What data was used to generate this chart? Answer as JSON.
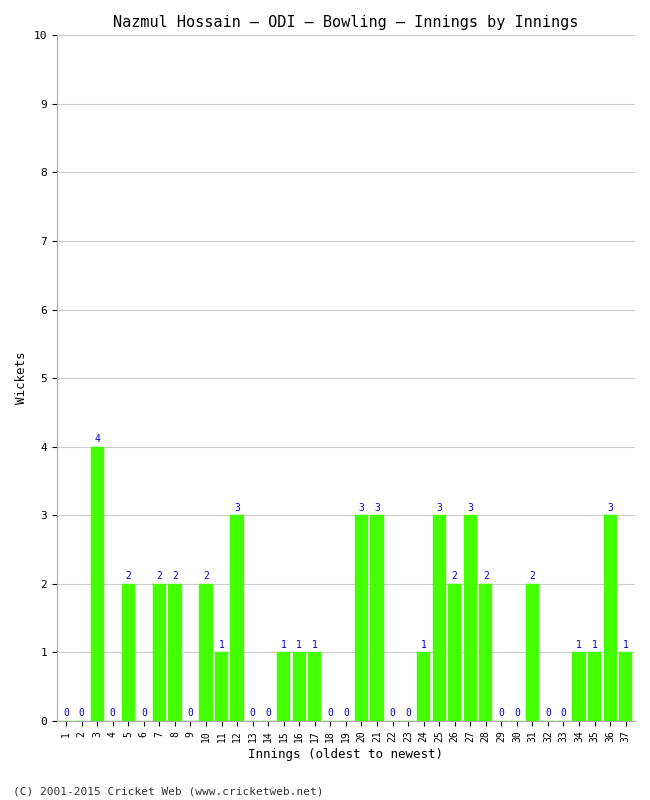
{
  "title": "Nazmul Hossain – ODI – Bowling – Innings by Innings",
  "xlabel": "Innings (oldest to newest)",
  "ylabel": "Wickets",
  "footnote": "(C) 2001-2015 Cricket Web (www.cricketweb.net)",
  "innings": [
    1,
    2,
    3,
    4,
    5,
    6,
    7,
    8,
    9,
    10,
    11,
    12,
    13,
    14,
    15,
    16,
    17,
    18,
    19,
    20,
    21,
    22,
    23,
    24,
    25,
    26,
    27,
    28,
    29,
    30,
    31,
    32,
    33,
    34,
    35,
    36,
    37
  ],
  "wickets": [
    0,
    0,
    4,
    0,
    2,
    0,
    2,
    2,
    0,
    2,
    1,
    3,
    0,
    0,
    1,
    1,
    1,
    0,
    0,
    3,
    3,
    0,
    0,
    1,
    3,
    2,
    3,
    2,
    0,
    0,
    2,
    0,
    0,
    1,
    1,
    3,
    1
  ],
  "bar_color": "#44ff00",
  "bar_edge_color": "#44ff00",
  "label_color": "#0000cc",
  "ylim": [
    0,
    10
  ],
  "yticks": [
    0,
    1,
    2,
    3,
    4,
    5,
    6,
    7,
    8,
    9,
    10
  ],
  "grid_color": "#cccccc",
  "bg_color": "#ffffff",
  "title_fontsize": 11,
  "axis_label_fontsize": 9,
  "tick_fontsize": 7,
  "bar_label_fontsize": 7,
  "footnote_fontsize": 8
}
